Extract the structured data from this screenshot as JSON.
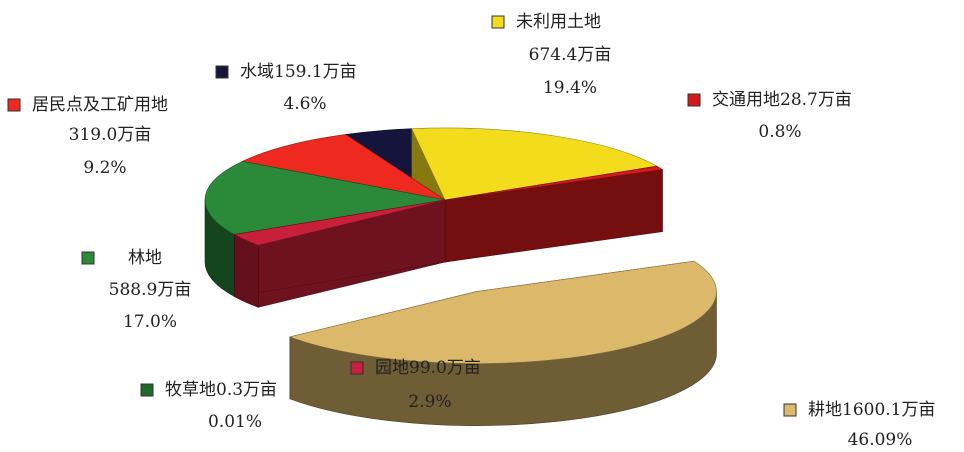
{
  "chart_data": {
    "type": "pie",
    "categories": [
      "耕地",
      "园地",
      "牧草地",
      "林地",
      "居民点及工矿用地",
      "水域",
      "未利用土地",
      "交通用地"
    ],
    "values": [
      1600.1,
      99.0,
      0.3,
      588.9,
      319.0,
      159.1,
      674.4,
      28.7
    ],
    "value_labels": [
      "1600.1万亩",
      "99.0万亩",
      "0.3万亩",
      "588.9万亩",
      "319.0万亩",
      "159.1万亩",
      "674.4万亩",
      "28.7万亩"
    ],
    "percents": [
      46.09,
      2.9,
      0.01,
      17.0,
      9.2,
      4.6,
      19.4,
      0.8
    ],
    "percent_labels": [
      "46.09%",
      "2.9%",
      "0.01%",
      "17.0%",
      "9.2%",
      "4.6%",
      "19.4%",
      "0.8%"
    ],
    "colors": [
      "#dcb96a",
      "#c8203a",
      "#1e6a2a",
      "#2a8a3a",
      "#ee2a20",
      "#14143c",
      "#f2dc1c",
      "#d41a1a"
    ],
    "exploded": [
      true,
      false,
      false,
      false,
      false,
      false,
      false,
      false
    ]
  }
}
